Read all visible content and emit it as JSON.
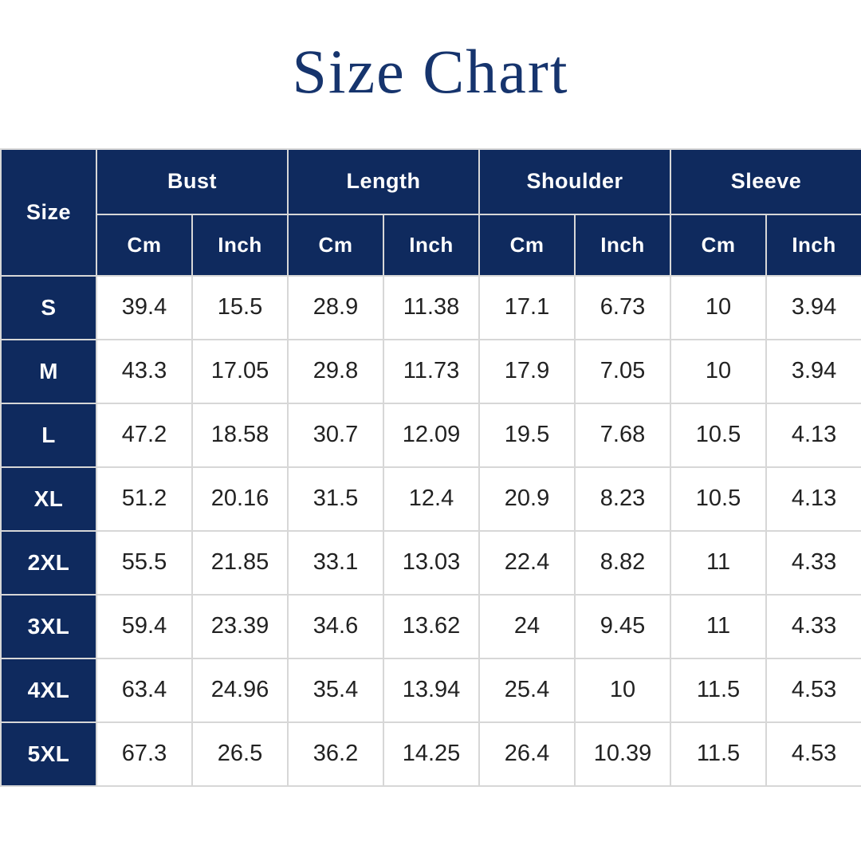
{
  "title": "Size Chart",
  "colors": {
    "header_navy": "#0f2a5e",
    "title_navy": "#16346d",
    "grid_line": "#d7d7d7",
    "cell_text": "#222222",
    "header_text": "#ffffff",
    "background": "#ffffff"
  },
  "chart_data": {
    "type": "table",
    "title": "Size Chart",
    "corner_header": "Size",
    "groups": [
      {
        "label": "Bust",
        "units": [
          "Cm",
          "Inch"
        ]
      },
      {
        "label": "Length",
        "units": [
          "Cm",
          "Inch"
        ]
      },
      {
        "label": "Shoulder",
        "units": [
          "Cm",
          "Inch"
        ]
      },
      {
        "label": "Sleeve",
        "units": [
          "Cm",
          "Inch"
        ]
      }
    ],
    "columns": [
      "Size",
      "Bust Cm",
      "Bust Inch",
      "Length Cm",
      "Length Inch",
      "Shoulder Cm",
      "Shoulder Inch",
      "Sleeve Cm",
      "Sleeve Inch"
    ],
    "rows": [
      {
        "size": "S",
        "values": [
          "39.4",
          "15.5",
          "28.9",
          "11.38",
          "17.1",
          "6.73",
          "10",
          "3.94"
        ]
      },
      {
        "size": "M",
        "values": [
          "43.3",
          "17.05",
          "29.8",
          "11.73",
          "17.9",
          "7.05",
          "10",
          "3.94"
        ]
      },
      {
        "size": "L",
        "values": [
          "47.2",
          "18.58",
          "30.7",
          "12.09",
          "19.5",
          "7.68",
          "10.5",
          "4.13"
        ]
      },
      {
        "size": "XL",
        "values": [
          "51.2",
          "20.16",
          "31.5",
          "12.4",
          "20.9",
          "8.23",
          "10.5",
          "4.13"
        ]
      },
      {
        "size": "2XL",
        "values": [
          "55.5",
          "21.85",
          "33.1",
          "13.03",
          "22.4",
          "8.82",
          "11",
          "4.33"
        ]
      },
      {
        "size": "3XL",
        "values": [
          "59.4",
          "23.39",
          "34.6",
          "13.62",
          "24",
          "9.45",
          "11",
          "4.33"
        ]
      },
      {
        "size": "4XL",
        "values": [
          "63.4",
          "24.96",
          "35.4",
          "13.94",
          "25.4",
          "10",
          "11.5",
          "4.53"
        ]
      },
      {
        "size": "5XL",
        "values": [
          "67.3",
          "26.5",
          "36.2",
          "14.25",
          "26.4",
          "10.39",
          "11.5",
          "4.53"
        ]
      }
    ]
  }
}
